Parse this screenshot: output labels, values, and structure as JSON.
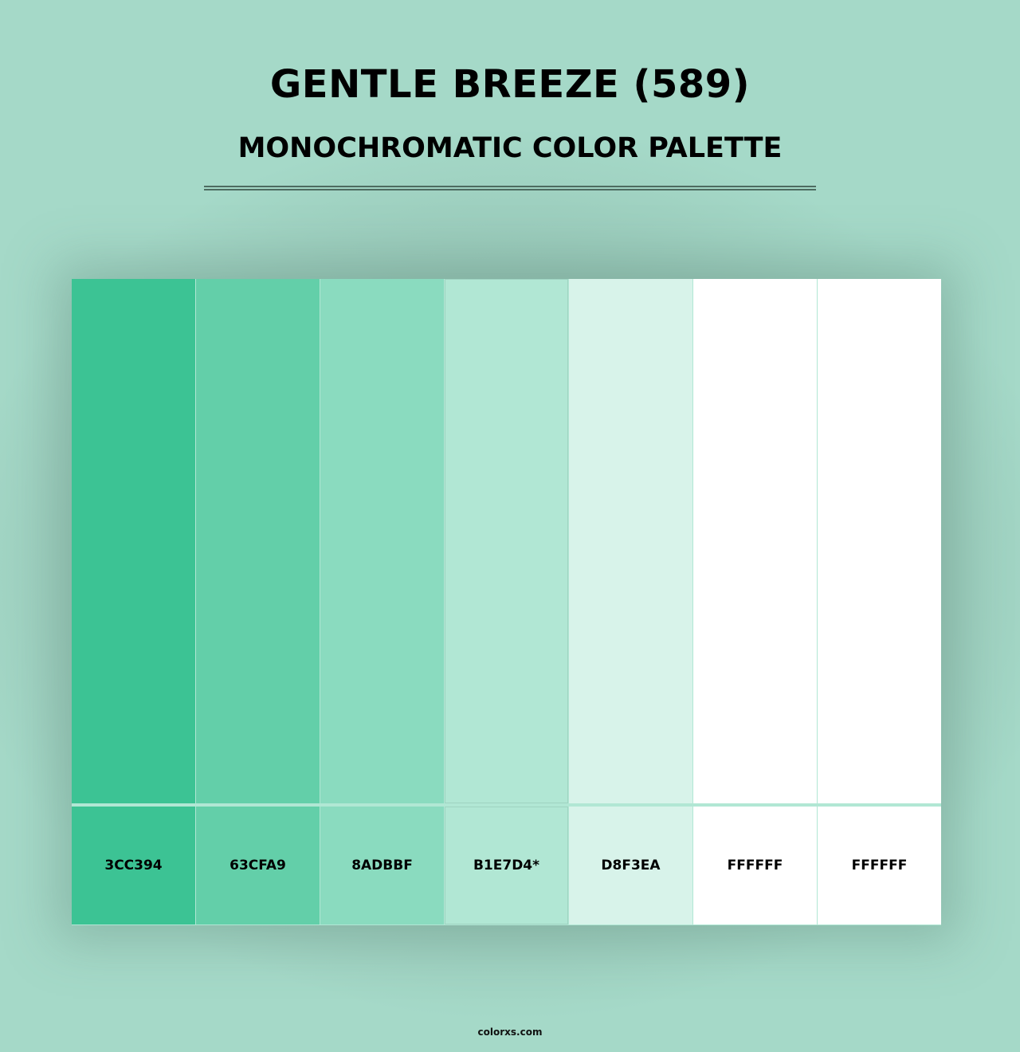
{
  "header": {
    "title": "GENTLE BREEZE (589)",
    "subtitle": "MONOCHROMATIC COLOR PALETTE"
  },
  "swatches": [
    {
      "label": "3CC394",
      "color": "#3CC394"
    },
    {
      "label": "63CFA9",
      "color": "#63CFA9"
    },
    {
      "label": "8ADBBF",
      "color": "#8ADBBF"
    },
    {
      "label": "B1E7D4*",
      "color": "#B1E7D4"
    },
    {
      "label": "D8F3EA",
      "color": "#D8F3EA"
    },
    {
      "label": "FFFFFF",
      "color": "#FFFFFF"
    },
    {
      "label": "FFFFFF",
      "color": "#FFFFFF"
    }
  ],
  "footer": {
    "site": "colorxs.com"
  }
}
